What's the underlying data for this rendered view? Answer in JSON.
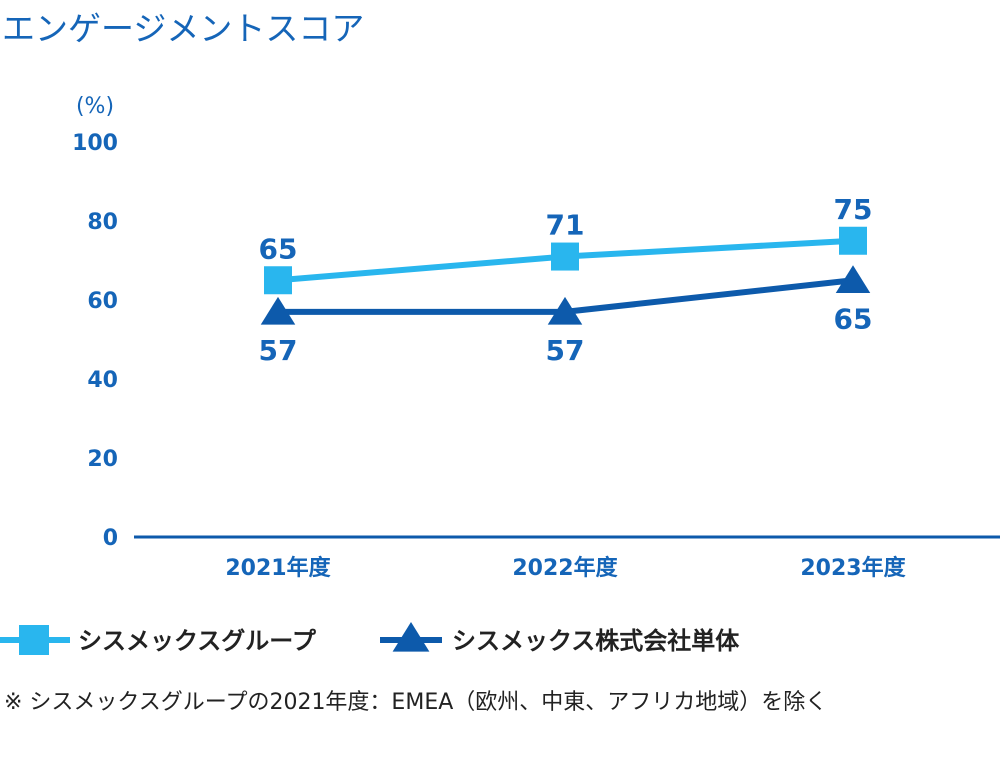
{
  "chart_data": {
    "type": "line",
    "title": "エンゲージメントスコア",
    "unit_label": "(%)",
    "categories": [
      "2021年度",
      "2022年度",
      "2023年度"
    ],
    "ylim": [
      0,
      100
    ],
    "yticks": [
      "0",
      "20",
      "40",
      "60",
      "80",
      "100"
    ],
    "grid": false,
    "legend_position": "bottom",
    "series": [
      {
        "name": "シスメックスグループ",
        "values": [
          65,
          71,
          75
        ],
        "marker": "square",
        "color": "#29b6ee",
        "label_position": "above"
      },
      {
        "name": "シスメックス株式会社単体",
        "values": [
          57,
          57,
          65
        ],
        "marker": "triangle",
        "color": "#0d5aab",
        "label_position": "below"
      }
    ],
    "axis_color": "#0d5aab",
    "tick_color": "#1565b8"
  },
  "footnote": "※ シスメックスグループの2021年度：EMEA（欧州、中東、アフリカ地域）を除く"
}
